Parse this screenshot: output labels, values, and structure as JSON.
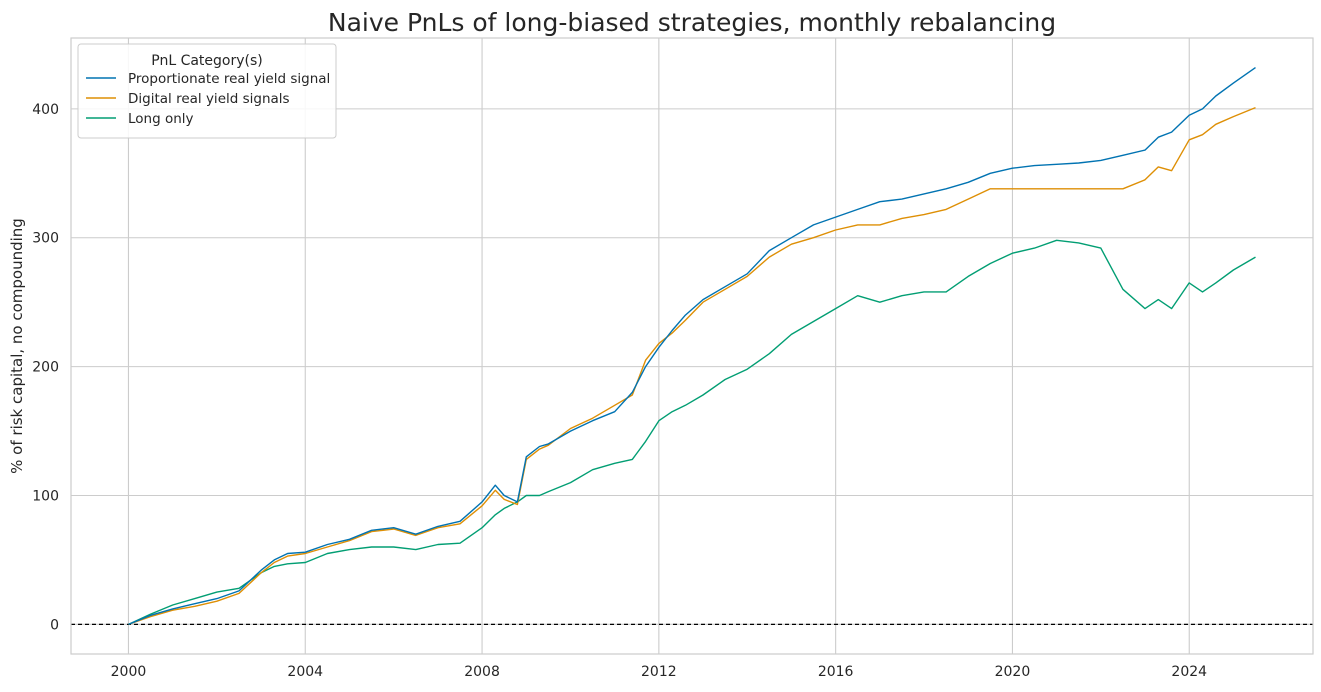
{
  "chart_data": {
    "type": "line",
    "title": "Naive PnLs of long-biased strategies, monthly rebalancing",
    "ylabel": "% of risk capital, no compounding",
    "xlabel": "",
    "xlim": [
      1998.7,
      2026.8
    ],
    "ylim": [
      -23,
      455
    ],
    "x_ticks": [
      2000,
      2004,
      2008,
      2012,
      2016,
      2020,
      2024
    ],
    "x_tick_labels": [
      "2000",
      "2004",
      "2008",
      "2012",
      "2016",
      "2020",
      "2024"
    ],
    "y_ticks": [
      0,
      100,
      200,
      300,
      400
    ],
    "y_tick_labels": [
      "0",
      "100",
      "200",
      "300",
      "400"
    ],
    "grid": true,
    "reference_line": {
      "y": 0,
      "style": "dashed",
      "color": "#000000"
    },
    "legend": {
      "title": "PnL Category(s)",
      "placement": "top-left"
    },
    "series": [
      {
        "name": "Proportionate real yield signal",
        "color": "#0173b2",
        "x": [
          2000.0,
          2000.5,
          2001.0,
          2001.5,
          2002.0,
          2002.5,
          2003.0,
          2003.3,
          2003.6,
          2004.0,
          2004.5,
          2005.0,
          2005.5,
          2006.0,
          2006.5,
          2007.0,
          2007.5,
          2008.0,
          2008.3,
          2008.5,
          2008.8,
          2009.0,
          2009.3,
          2009.5,
          2010.0,
          2010.5,
          2011.0,
          2011.4,
          2011.7,
          2012.0,
          2012.3,
          2012.6,
          2013.0,
          2013.5,
          2014.0,
          2014.5,
          2015.0,
          2015.5,
          2016.0,
          2016.5,
          2017.0,
          2017.5,
          2018.0,
          2018.5,
          2019.0,
          2019.5,
          2020.0,
          2020.5,
          2021.0,
          2021.5,
          2022.0,
          2022.5,
          2023.0,
          2023.3,
          2023.6,
          2024.0,
          2024.3,
          2024.6,
          2025.0,
          2025.5
        ],
        "values": [
          0,
          7,
          12,
          16,
          20,
          26,
          42,
          50,
          55,
          56,
          62,
          66,
          73,
          75,
          70,
          76,
          80,
          95,
          108,
          100,
          95,
          130,
          138,
          140,
          150,
          158,
          165,
          180,
          200,
          215,
          228,
          240,
          252,
          262,
          272,
          290,
          300,
          310,
          316,
          322,
          328,
          330,
          334,
          338,
          343,
          350,
          354,
          356,
          357,
          358,
          360,
          364,
          368,
          378,
          382,
          395,
          400,
          410,
          420,
          432
        ]
      },
      {
        "name": "Digital real yield signals",
        "color": "#de8f05",
        "x": [
          2000.0,
          2000.5,
          2001.0,
          2001.5,
          2002.0,
          2002.5,
          2003.0,
          2003.3,
          2003.6,
          2004.0,
          2004.5,
          2005.0,
          2005.5,
          2006.0,
          2006.5,
          2007.0,
          2007.5,
          2008.0,
          2008.3,
          2008.5,
          2008.8,
          2009.0,
          2009.3,
          2009.5,
          2010.0,
          2010.5,
          2011.0,
          2011.4,
          2011.7,
          2012.0,
          2012.3,
          2012.6,
          2013.0,
          2013.5,
          2014.0,
          2014.5,
          2015.0,
          2015.5,
          2016.0,
          2016.5,
          2017.0,
          2017.5,
          2018.0,
          2018.5,
          2019.0,
          2019.5,
          2020.0,
          2020.5,
          2021.0,
          2021.5,
          2022.0,
          2022.5,
          2023.0,
          2023.3,
          2023.6,
          2024.0,
          2024.3,
          2024.6,
          2025.0,
          2025.5
        ],
        "values": [
          0,
          6,
          11,
          14,
          18,
          24,
          40,
          48,
          53,
          55,
          60,
          65,
          72,
          74,
          69,
          75,
          78,
          92,
          104,
          97,
          93,
          128,
          136,
          139,
          152,
          160,
          170,
          178,
          205,
          218,
          226,
          236,
          250,
          260,
          270,
          285,
          295,
          300,
          306,
          310,
          310,
          315,
          318,
          322,
          330,
          338,
          338,
          338,
          338,
          338,
          338,
          338,
          345,
          355,
          352,
          376,
          380,
          388,
          394,
          401
        ]
      },
      {
        "name": "Long only",
        "color": "#029e73",
        "x": [
          2000.0,
          2000.5,
          2001.0,
          2001.5,
          2002.0,
          2002.5,
          2003.0,
          2003.3,
          2003.6,
          2004.0,
          2004.5,
          2005.0,
          2005.5,
          2006.0,
          2006.5,
          2007.0,
          2007.5,
          2008.0,
          2008.3,
          2008.5,
          2008.8,
          2009.0,
          2009.3,
          2009.5,
          2010.0,
          2010.5,
          2011.0,
          2011.4,
          2011.7,
          2012.0,
          2012.3,
          2012.6,
          2013.0,
          2013.5,
          2014.0,
          2014.5,
          2015.0,
          2015.5,
          2016.0,
          2016.5,
          2017.0,
          2017.5,
          2018.0,
          2018.5,
          2019.0,
          2019.5,
          2020.0,
          2020.5,
          2021.0,
          2021.5,
          2022.0,
          2022.5,
          2023.0,
          2023.3,
          2023.6,
          2024.0,
          2024.3,
          2024.6,
          2025.0,
          2025.5
        ],
        "values": [
          0,
          8,
          15,
          20,
          25,
          28,
          40,
          45,
          47,
          48,
          55,
          58,
          60,
          60,
          58,
          62,
          63,
          75,
          85,
          90,
          95,
          100,
          100,
          103,
          110,
          120,
          125,
          128,
          142,
          158,
          165,
          170,
          178,
          190,
          198,
          210,
          225,
          235,
          245,
          255,
          250,
          255,
          258,
          258,
          270,
          280,
          288,
          292,
          298,
          296,
          292,
          260,
          245,
          252,
          245,
          265,
          258,
          265,
          275,
          285
        ]
      }
    ]
  }
}
